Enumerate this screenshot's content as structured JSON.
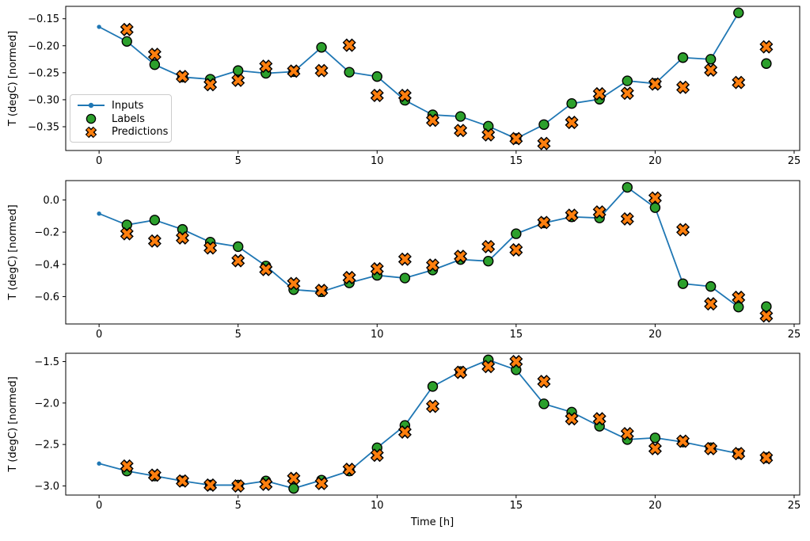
{
  "figure": {
    "xlabel": "Time [h]",
    "ylabel": "T (degC) [normed]",
    "background": "#ffffff",
    "colors": {
      "inputs_line": "#1f77b4",
      "labels_marker": "#2ca02c",
      "predictions_marker": "#ff7f0e",
      "marker_edge": "#000000",
      "axis": "#000000"
    },
    "legend": {
      "position": "upper-left-of-top-subplot",
      "items": [
        {
          "label": "Inputs",
          "marker": "line-with-dot",
          "color": "#1f77b4"
        },
        {
          "label": "Labels",
          "marker": "circle",
          "color": "#2ca02c"
        },
        {
          "label": "Predictions",
          "marker": "x",
          "color": "#ff7f0e"
        }
      ]
    }
  },
  "chart_data": [
    {
      "type": "line",
      "subplot": "top",
      "ylabel": "T (degC) [normed]",
      "xlim": [
        -1.2,
        25.2
      ],
      "ylim": [
        -0.394,
        -0.127
      ],
      "grid": false,
      "xticks": [
        0,
        5,
        10,
        15,
        20,
        25
      ],
      "yticks": [
        {
          "value": -0.15,
          "label": "−0.15"
        },
        {
          "value": -0.2,
          "label": "−0.20"
        },
        {
          "value": -0.25,
          "label": "−0.25"
        },
        {
          "value": -0.3,
          "label": "−0.30"
        },
        {
          "value": -0.35,
          "label": "−0.35"
        }
      ],
      "series": [
        {
          "name": "Inputs",
          "type": "line",
          "marker": "dot",
          "x": [
            0,
            1,
            2,
            3,
            4,
            5,
            6,
            7,
            8,
            9,
            10,
            11,
            12,
            13,
            14,
            15,
            16,
            17,
            18,
            19,
            20,
            21,
            22,
            23
          ],
          "y": [
            -0.165,
            -0.192,
            -0.235,
            -0.258,
            -0.262,
            -0.246,
            -0.251,
            -0.248,
            -0.203,
            -0.249,
            -0.257,
            -0.301,
            -0.328,
            -0.331,
            -0.349,
            -0.372,
            -0.346,
            -0.307,
            -0.299,
            -0.265,
            -0.27,
            -0.222,
            -0.225,
            -0.139
          ]
        },
        {
          "name": "Labels",
          "type": "scatter",
          "marker": "circle",
          "x": [
            1,
            2,
            3,
            4,
            5,
            6,
            7,
            8,
            9,
            10,
            11,
            12,
            13,
            14,
            15,
            16,
            17,
            18,
            19,
            20,
            21,
            22,
            23,
            24
          ],
          "y": [
            -0.192,
            -0.235,
            -0.258,
            -0.262,
            -0.246,
            -0.251,
            -0.248,
            -0.203,
            -0.249,
            -0.257,
            -0.301,
            -0.328,
            -0.331,
            -0.349,
            -0.372,
            -0.346,
            -0.307,
            -0.299,
            -0.265,
            -0.27,
            -0.222,
            -0.225,
            -0.139,
            -0.233
          ]
        },
        {
          "name": "Predictions",
          "type": "scatter",
          "marker": "X",
          "x": [
            1,
            2,
            3,
            4,
            5,
            6,
            7,
            8,
            9,
            10,
            11,
            12,
            13,
            14,
            15,
            16,
            17,
            18,
            19,
            20,
            21,
            22,
            23,
            24
          ],
          "y": [
            -0.17,
            -0.216,
            -0.257,
            -0.272,
            -0.264,
            -0.238,
            -0.247,
            -0.246,
            -0.199,
            -0.292,
            -0.292,
            -0.338,
            -0.357,
            -0.365,
            -0.372,
            -0.381,
            -0.342,
            -0.289,
            -0.288,
            -0.271,
            -0.277,
            -0.245,
            -0.268,
            -0.202
          ]
        }
      ]
    },
    {
      "type": "line",
      "subplot": "middle",
      "ylabel": "T (degC) [normed]",
      "xlim": [
        -1.2,
        25.2
      ],
      "ylim": [
        -0.77,
        0.12
      ],
      "grid": false,
      "xticks": [
        0,
        5,
        10,
        15,
        20,
        25
      ],
      "yticks": [
        {
          "value": 0.0,
          "label": "0.0"
        },
        {
          "value": -0.2,
          "label": "−0.2"
        },
        {
          "value": -0.4,
          "label": "−0.4"
        },
        {
          "value": -0.6,
          "label": "−0.6"
        }
      ],
      "series": [
        {
          "name": "Inputs",
          "type": "line",
          "marker": "dot",
          "x": [
            0,
            1,
            2,
            3,
            4,
            5,
            6,
            7,
            8,
            9,
            10,
            11,
            12,
            13,
            14,
            15,
            16,
            17,
            18,
            19,
            20,
            21,
            22,
            23
          ],
          "y": [
            -0.085,
            -0.155,
            -0.125,
            -0.183,
            -0.262,
            -0.29,
            -0.41,
            -0.557,
            -0.57,
            -0.515,
            -0.468,
            -0.485,
            -0.435,
            -0.37,
            -0.38,
            -0.21,
            -0.143,
            -0.105,
            -0.112,
            0.078,
            -0.048,
            -0.52,
            -0.537,
            -0.665
          ]
        },
        {
          "name": "Labels",
          "type": "scatter",
          "marker": "circle",
          "x": [
            1,
            2,
            3,
            4,
            5,
            6,
            7,
            8,
            9,
            10,
            11,
            12,
            13,
            14,
            15,
            16,
            17,
            18,
            19,
            20,
            21,
            22,
            23,
            24
          ],
          "y": [
            -0.155,
            -0.125,
            -0.183,
            -0.262,
            -0.29,
            -0.41,
            -0.557,
            -0.57,
            -0.515,
            -0.468,
            -0.485,
            -0.435,
            -0.37,
            -0.38,
            -0.21,
            -0.143,
            -0.105,
            -0.112,
            0.078,
            -0.048,
            -0.52,
            -0.537,
            -0.665,
            -0.662
          ]
        },
        {
          "name": "Predictions",
          "type": "scatter",
          "marker": "X",
          "x": [
            1,
            2,
            3,
            4,
            5,
            6,
            7,
            8,
            9,
            10,
            11,
            12,
            13,
            14,
            15,
            16,
            17,
            18,
            19,
            20,
            21,
            22,
            23,
            24
          ],
          "y": [
            -0.21,
            -0.255,
            -0.236,
            -0.298,
            -0.377,
            -0.432,
            -0.519,
            -0.562,
            -0.482,
            -0.428,
            -0.368,
            -0.405,
            -0.35,
            -0.29,
            -0.31,
            -0.14,
            -0.095,
            -0.075,
            -0.118,
            0.012,
            -0.185,
            -0.645,
            -0.605,
            -0.72
          ]
        }
      ]
    },
    {
      "type": "line",
      "subplot": "bottom",
      "ylabel": "T (degC) [normed]",
      "xlabel": "Time [h]",
      "xlim": [
        -1.2,
        25.2
      ],
      "ylim": [
        -3.11,
        -1.4
      ],
      "grid": false,
      "xticks": [
        0,
        5,
        10,
        15,
        20,
        25
      ],
      "yticks": [
        {
          "value": -1.5,
          "label": "−1.5"
        },
        {
          "value": -2.0,
          "label": "−2.0"
        },
        {
          "value": -2.5,
          "label": "−2.5"
        },
        {
          "value": -3.0,
          "label": "−3.0"
        }
      ],
      "series": [
        {
          "name": "Inputs",
          "type": "line",
          "marker": "dot",
          "x": [
            0,
            1,
            2,
            3,
            4,
            5,
            6,
            7,
            8,
            9,
            10,
            11,
            12,
            13,
            14,
            15,
            16,
            17,
            18,
            19,
            20,
            21,
            22,
            23
          ],
          "y": [
            -2.73,
            -2.82,
            -2.88,
            -2.94,
            -2.99,
            -2.99,
            -2.94,
            -3.03,
            -2.93,
            -2.82,
            -2.54,
            -2.27,
            -1.8,
            -1.62,
            -1.48,
            -1.6,
            -2.01,
            -2.11,
            -2.28,
            -2.44,
            -2.42,
            -2.47,
            -2.54,
            -2.61
          ]
        },
        {
          "name": "Labels",
          "type": "scatter",
          "marker": "circle",
          "x": [
            1,
            2,
            3,
            4,
            5,
            6,
            7,
            8,
            9,
            10,
            11,
            12,
            13,
            14,
            15,
            16,
            17,
            18,
            19,
            20,
            21,
            22,
            23,
            24
          ],
          "y": [
            -2.82,
            -2.88,
            -2.94,
            -2.99,
            -2.99,
            -2.94,
            -3.03,
            -2.93,
            -2.82,
            -2.54,
            -2.27,
            -1.8,
            -1.62,
            -1.48,
            -1.6,
            -2.01,
            -2.11,
            -2.28,
            -2.44,
            -2.42,
            -2.47,
            -2.54,
            -2.61,
            -2.66
          ]
        },
        {
          "name": "Predictions",
          "type": "scatter",
          "marker": "X",
          "x": [
            1,
            2,
            3,
            4,
            5,
            6,
            7,
            8,
            9,
            10,
            11,
            12,
            13,
            14,
            15,
            16,
            17,
            18,
            19,
            20,
            21,
            22,
            23,
            24
          ],
          "y": [
            -2.76,
            -2.87,
            -2.94,
            -2.99,
            -3.0,
            -2.98,
            -2.91,
            -2.97,
            -2.8,
            -2.63,
            -2.35,
            -2.04,
            -1.63,
            -1.56,
            -1.5,
            -1.74,
            -2.19,
            -2.19,
            -2.37,
            -2.55,
            -2.46,
            -2.55,
            -2.61,
            -2.66
          ]
        }
      ]
    }
  ]
}
